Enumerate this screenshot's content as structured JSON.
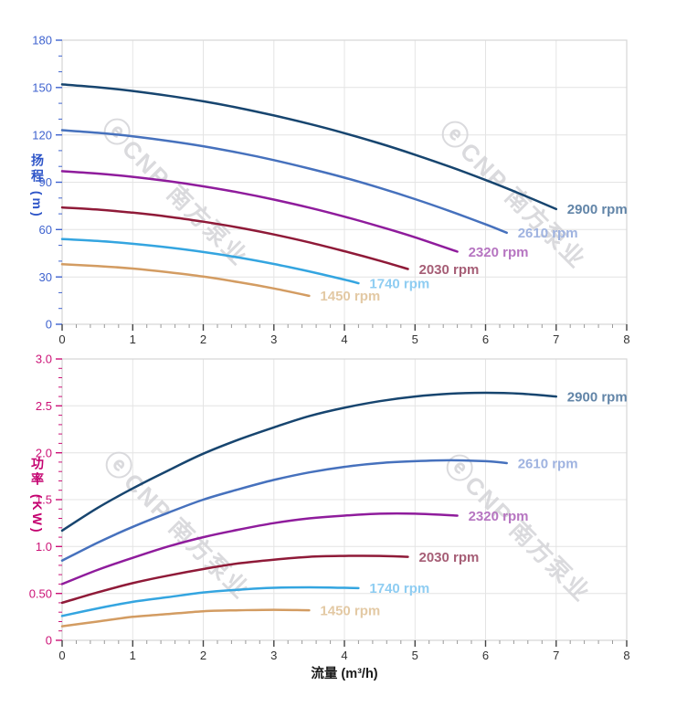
{
  "watermark": {
    "logo_glyph": "ⓔ",
    "text": "CNP 南方泵业",
    "color": "#d4d4d8"
  },
  "frame": {
    "grid_color": "#e4e4e4",
    "border_color": "#d6d6d6",
    "x_tick_color": "#444444",
    "x_tick_minor_color": "#999999",
    "x_label_color": "#333333"
  },
  "chart_data": [
    {
      "id": "head-curves",
      "type": "line",
      "title": "",
      "ylabel": "扬程 (m)",
      "xlabel": "",
      "xlim": [
        0,
        8
      ],
      "ylim": [
        0,
        180
      ],
      "grid": true,
      "legend_position": "curve-end-labels",
      "x_tick_values": [
        0,
        1,
        2,
        3,
        4,
        5,
        6,
        7,
        8
      ],
      "x_tick_labels": [
        "0",
        "1",
        "2",
        "3",
        "4",
        "5",
        "6",
        "7",
        "8"
      ],
      "x_minor_step": 0.2,
      "y_tick_values": [
        0,
        30,
        60,
        90,
        120,
        150,
        180
      ],
      "y_tick_labels": [
        "0",
        "30",
        "60",
        "90",
        "120",
        "150",
        "180"
      ],
      "y_minor_step": 10,
      "axis_color": "#3f63cf",
      "series": [
        {
          "name": "2900 rpm",
          "color": "#17456f",
          "label_color": "#6285a8",
          "points": [
            [
              0,
              152
            ],
            [
              0.5,
              150.2
            ],
            [
              1,
              147.8
            ],
            [
              1.5,
              144.8
            ],
            [
              2,
              141.3
            ],
            [
              2.5,
              137.1
            ],
            [
              3,
              132.3
            ],
            [
              3.5,
              127
            ],
            [
              4,
              121.1
            ],
            [
              4.5,
              114.6
            ],
            [
              5,
              107.4
            ],
            [
              5.5,
              99.7
            ],
            [
              6,
              91.4
            ],
            [
              6.5,
              82.5
            ],
            [
              7,
              73
            ]
          ]
        },
        {
          "name": "2610 rpm",
          "color": "#4671bd",
          "label_color": "#9fb3e0",
          "points": [
            [
              0,
              123
            ],
            [
              0.5,
              121.3
            ],
            [
              1,
              119.1
            ],
            [
              1.5,
              116.2
            ],
            [
              2,
              112.8
            ],
            [
              2.5,
              108.7
            ],
            [
              3,
              104
            ],
            [
              3.5,
              98.7
            ],
            [
              4,
              92.9
            ],
            [
              4.5,
              86.4
            ],
            [
              5,
              79.3
            ],
            [
              5.5,
              71.6
            ],
            [
              6,
              63.3
            ],
            [
              6.3,
              58
            ]
          ]
        },
        {
          "name": "2320 rpm",
          "color": "#8f1c9c",
          "label_color": "#b675c1",
          "points": [
            [
              0,
              97
            ],
            [
              0.5,
              95.5
            ],
            [
              1,
              93.4
            ],
            [
              1.5,
              90.7
            ],
            [
              2,
              87.4
            ],
            [
              2.5,
              83.5
            ],
            [
              3,
              79
            ],
            [
              3.5,
              73.9
            ],
            [
              4,
              68.2
            ],
            [
              4.5,
              61.9
            ],
            [
              5,
              55.1
            ],
            [
              5.6,
              46
            ]
          ]
        },
        {
          "name": "2030 rpm",
          "color": "#8f1a38",
          "label_color": "#a65e76",
          "points": [
            [
              0,
              74
            ],
            [
              0.5,
              72.7
            ],
            [
              1,
              70.7
            ],
            [
              1.5,
              68.2
            ],
            [
              2,
              65
            ],
            [
              2.5,
              61.3
            ],
            [
              3,
              56.9
            ],
            [
              3.5,
              51.9
            ],
            [
              4,
              46.3
            ],
            [
              4.5,
              40.3
            ],
            [
              4.9,
              35
            ]
          ]
        },
        {
          "name": "1740 rpm",
          "color": "#34a5e0",
          "label_color": "#8fcdf2",
          "points": [
            [
              0,
              54
            ],
            [
              0.5,
              52.8
            ],
            [
              1,
              51
            ],
            [
              1.5,
              48.7
            ],
            [
              2,
              45.8
            ],
            [
              2.5,
              42.3
            ],
            [
              3,
              38.2
            ],
            [
              3.5,
              33.5
            ],
            [
              4,
              28.3
            ],
            [
              4.2,
              26
            ]
          ]
        },
        {
          "name": "1450 rpm",
          "color": "#d39c62",
          "label_color": "#e3c9a4",
          "points": [
            [
              0,
              38
            ],
            [
              0.5,
              36.9
            ],
            [
              1,
              35.3
            ],
            [
              1.5,
              33
            ],
            [
              2,
              30.2
            ],
            [
              2.5,
              26.7
            ],
            [
              3,
              22.7
            ],
            [
              3.5,
              18
            ]
          ]
        }
      ]
    },
    {
      "id": "power-curves",
      "type": "line",
      "title": "",
      "ylabel": "功率 (KW)",
      "xlabel": "流量 (m³/h)",
      "xlim": [
        0,
        8
      ],
      "ylim": [
        0,
        3
      ],
      "grid": true,
      "legend_position": "curve-end-labels",
      "x_tick_values": [
        0,
        1,
        2,
        3,
        4,
        5,
        6,
        7,
        8
      ],
      "x_tick_labels": [
        "0",
        "1",
        "2",
        "3",
        "4",
        "5",
        "6",
        "7",
        "8"
      ],
      "x_minor_step": 0.2,
      "y_tick_values": [
        0,
        0.5,
        1,
        1.5,
        2,
        2.5,
        3
      ],
      "y_tick_labels": [
        "0",
        "0.50",
        "1.0",
        "1.5",
        "2.0",
        "2.5",
        "3.0"
      ],
      "y_minor_step": 0.1,
      "axis_color": "#cc1277",
      "series": [
        {
          "name": "2900 rpm",
          "color": "#17456f",
          "label_color": "#6285a8",
          "points": [
            [
              0,
              1.17
            ],
            [
              0.5,
              1.41
            ],
            [
              1,
              1.62
            ],
            [
              1.5,
              1.81
            ],
            [
              2,
              1.99
            ],
            [
              2.5,
              2.14
            ],
            [
              3,
              2.27
            ],
            [
              3.5,
              2.39
            ],
            [
              4,
              2.48
            ],
            [
              4.5,
              2.55
            ],
            [
              5,
              2.6
            ],
            [
              5.5,
              2.63
            ],
            [
              6,
              2.64
            ],
            [
              6.5,
              2.63
            ],
            [
              7,
              2.6
            ]
          ]
        },
        {
          "name": "2610 rpm",
          "color": "#4671bd",
          "label_color": "#9fb3e0",
          "points": [
            [
              0,
              0.85
            ],
            [
              0.5,
              1.04
            ],
            [
              1,
              1.21
            ],
            [
              1.5,
              1.36
            ],
            [
              2,
              1.5
            ],
            [
              2.5,
              1.61
            ],
            [
              3,
              1.71
            ],
            [
              3.5,
              1.79
            ],
            [
              4,
              1.85
            ],
            [
              4.5,
              1.89
            ],
            [
              5,
              1.91
            ],
            [
              5.5,
              1.92
            ],
            [
              6,
              1.91
            ],
            [
              6.3,
              1.89
            ]
          ]
        },
        {
          "name": "2320 rpm",
          "color": "#8f1c9c",
          "label_color": "#b675c1",
          "points": [
            [
              0,
              0.6
            ],
            [
              0.5,
              0.75
            ],
            [
              1,
              0.88
            ],
            [
              1.5,
              1
            ],
            [
              2,
              1.1
            ],
            [
              2.5,
              1.18
            ],
            [
              3,
              1.25
            ],
            [
              3.5,
              1.3
            ],
            [
              4,
              1.33
            ],
            [
              4.5,
              1.35
            ],
            [
              5,
              1.35
            ],
            [
              5.6,
              1.33
            ]
          ]
        },
        {
          "name": "2030 rpm",
          "color": "#8f1a38",
          "label_color": "#a65e76",
          "points": [
            [
              0,
              0.4
            ],
            [
              0.5,
              0.51
            ],
            [
              1,
              0.61
            ],
            [
              1.5,
              0.69
            ],
            [
              2,
              0.76
            ],
            [
              2.5,
              0.82
            ],
            [
              3,
              0.86
            ],
            [
              3.5,
              0.89
            ],
            [
              4,
              0.9
            ],
            [
              4.5,
              0.9
            ],
            [
              4.9,
              0.89
            ]
          ]
        },
        {
          "name": "1740 rpm",
          "color": "#34a5e0",
          "label_color": "#8fcdf2",
          "points": [
            [
              0,
              0.26
            ],
            [
              0.5,
              0.34
            ],
            [
              1,
              0.41
            ],
            [
              1.5,
              0.46
            ],
            [
              2,
              0.51
            ],
            [
              2.5,
              0.54
            ],
            [
              3,
              0.56
            ],
            [
              3.5,
              0.565
            ],
            [
              4,
              0.56
            ],
            [
              4.2,
              0.556
            ]
          ]
        },
        {
          "name": "1450 rpm",
          "color": "#d39c62",
          "label_color": "#e3c9a4",
          "points": [
            [
              0,
              0.15
            ],
            [
              0.5,
              0.2
            ],
            [
              1,
              0.25
            ],
            [
              1.5,
              0.28
            ],
            [
              2,
              0.31
            ],
            [
              2.5,
              0.32
            ],
            [
              3,
              0.325
            ],
            [
              3.5,
              0.32
            ]
          ]
        }
      ]
    }
  ]
}
